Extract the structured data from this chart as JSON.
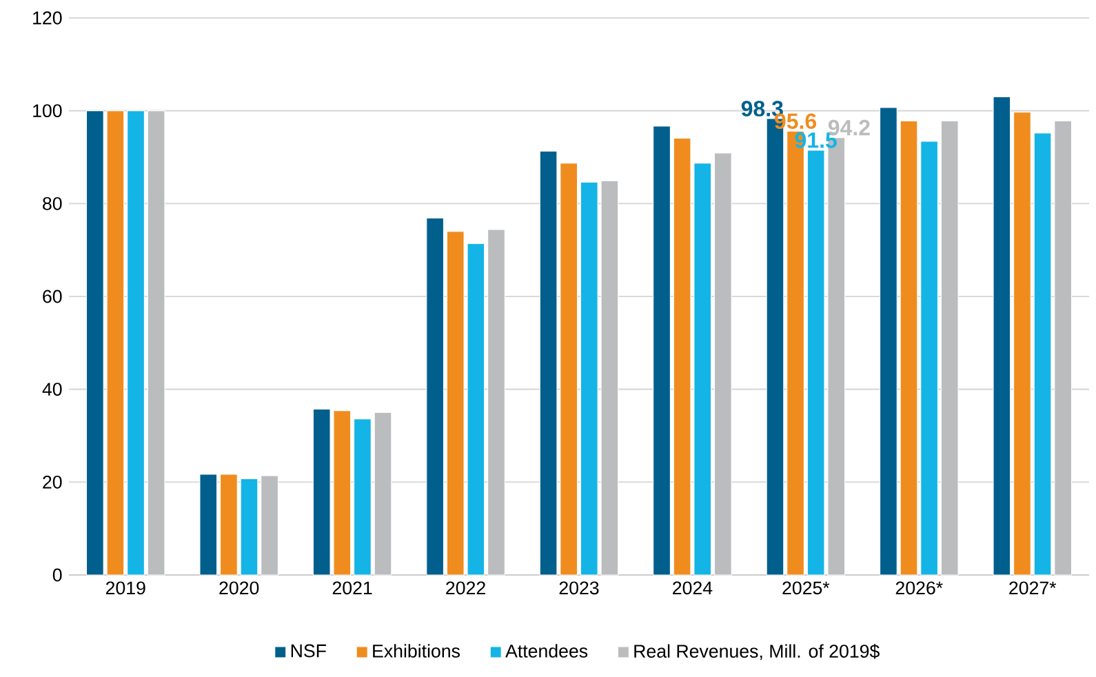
{
  "chart_data": {
    "type": "bar",
    "categories": [
      "2019",
      "2020",
      "2021",
      "2022",
      "2023",
      "2024",
      "2025*",
      "2026*",
      "2027*"
    ],
    "series": [
      {
        "name": "NSF",
        "color": "#005F8C",
        "values": [
          100,
          21.7,
          35.7,
          76.9,
          91.3,
          96.7,
          98.3,
          100.7,
          103.0
        ],
        "value_labels": [
          null,
          null,
          null,
          null,
          null,
          null,
          "98.3",
          null,
          null
        ]
      },
      {
        "name": "Exhibitions",
        "color": "#F08C1E",
        "values": [
          100,
          21.7,
          35.4,
          74.0,
          88.7,
          94.1,
          95.6,
          97.8,
          99.7
        ],
        "value_labels": [
          null,
          null,
          null,
          null,
          null,
          null,
          "95.6",
          null,
          null
        ]
      },
      {
        "name": "Attendees",
        "color": "#14B4E6",
        "values": [
          100,
          20.7,
          33.6,
          71.4,
          84.6,
          88.7,
          91.5,
          93.4,
          95.2
        ],
        "value_labels": [
          null,
          null,
          null,
          null,
          null,
          null,
          "91.5",
          null,
          null
        ]
      },
      {
        "name": "Real Revenues, Mill. of 2019$",
        "color": "#BBBCBE",
        "values": [
          100,
          21.4,
          35.0,
          74.4,
          84.9,
          90.9,
          94.2,
          97.8,
          97.8
        ],
        "value_labels": [
          null,
          null,
          null,
          null,
          null,
          null,
          "94.2",
          null,
          null
        ]
      }
    ],
    "ylim": [
      0,
      120
    ],
    "yticks": [
      0,
      20,
      40,
      60,
      80,
      100,
      120
    ],
    "grid": "y",
    "legend": "bottom"
  }
}
